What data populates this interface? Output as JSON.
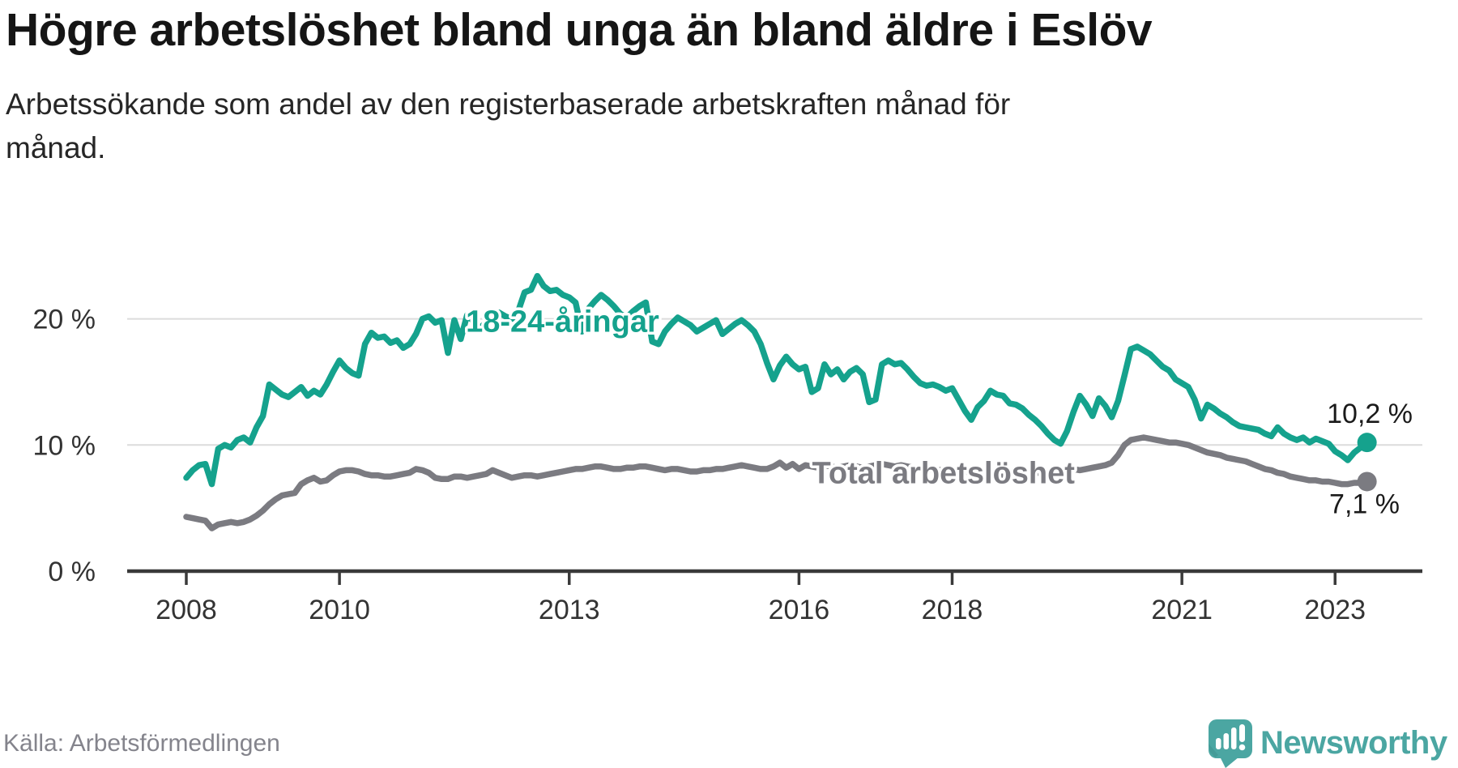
{
  "header": {
    "title": "Högre arbetslöshet bland unga än bland äldre i Eslöv",
    "subtitle": "Arbetssökande som andel av den registerbaserade arbetskraften månad för\nmånad."
  },
  "footer": {
    "source": "Källa: Arbetsförmedlingen",
    "brand": "Newsworthy"
  },
  "colors": {
    "youth": "#15a28d",
    "total": "#7b7b81",
    "brand": "#4ba6a2",
    "grid": "#dcdcdc",
    "axis": "#3a3a3a"
  },
  "chart_data": {
    "type": "line",
    "title": "Högre arbetslöshet bland unga än bland äldre i Eslöv",
    "x_start": 2008.0,
    "points_per_year": 12,
    "x_ticks": [
      {
        "value": 2008,
        "label": "2008"
      },
      {
        "value": 2010,
        "label": "2010"
      },
      {
        "value": 2013,
        "label": "2013"
      },
      {
        "value": 2016,
        "label": "2016"
      },
      {
        "value": 2018,
        "label": "2018"
      },
      {
        "value": 2021,
        "label": "2021"
      },
      {
        "value": 2023,
        "label": "2023"
      }
    ],
    "y_ticks": [
      {
        "value": 0,
        "label": "0 %"
      },
      {
        "value": 10,
        "label": "10 %"
      },
      {
        "value": 20,
        "label": "20 %"
      }
    ],
    "ylim": [
      0,
      25
    ],
    "xlim": [
      2007.2,
      2024.1
    ],
    "grid": "horizontal",
    "legend_position": "inline-labels",
    "series": [
      {
        "name": "18-24-åringar",
        "color": "#15a28d",
        "end_label": "10,2 %",
        "label_anchor": {
          "x": 2011.65,
          "y": 19.8
        },
        "values": [
          7.4,
          8.0,
          8.4,
          8.5,
          6.9,
          9.7,
          10.0,
          9.8,
          10.4,
          10.6,
          10.2,
          11.4,
          12.3,
          14.8,
          14.4,
          14.0,
          13.8,
          14.2,
          14.6,
          13.9,
          14.3,
          14.0,
          14.8,
          15.8,
          16.7,
          16.1,
          15.7,
          15.5,
          18.0,
          18.9,
          18.5,
          18.6,
          18.1,
          18.3,
          17.7,
          18.0,
          18.8,
          20.0,
          20.2,
          19.7,
          19.9,
          17.3,
          19.9,
          18.4,
          20.3,
          19.8,
          19.3,
          19.7,
          20.1,
          20.5,
          20.2,
          20.0,
          20.6,
          22.1,
          22.3,
          23.4,
          22.6,
          22.2,
          22.3,
          21.9,
          21.7,
          21.3,
          19.0,
          20.8,
          21.4,
          21.9,
          21.5,
          21.0,
          20.4,
          20.1,
          20.6,
          21.0,
          21.3,
          18.2,
          18.0,
          19.0,
          19.6,
          20.1,
          19.8,
          19.5,
          19.0,
          19.3,
          19.6,
          19.9,
          18.8,
          19.2,
          19.6,
          19.9,
          19.5,
          19.0,
          18.0,
          16.5,
          15.2,
          16.3,
          17.0,
          16.4,
          16.0,
          16.2,
          14.2,
          14.5,
          16.4,
          15.6,
          16.0,
          15.2,
          15.8,
          16.1,
          15.6,
          13.4,
          13.6,
          16.4,
          16.7,
          16.4,
          16.5,
          16.0,
          15.4,
          14.9,
          14.7,
          14.8,
          14.6,
          14.3,
          14.5,
          13.6,
          12.7,
          12.0,
          13.0,
          13.5,
          14.3,
          14.0,
          13.9,
          13.3,
          13.2,
          12.9,
          12.4,
          12.0,
          11.5,
          10.9,
          10.4,
          10.1,
          11.1,
          12.6,
          13.9,
          13.2,
          12.3,
          13.7,
          13.1,
          12.2,
          13.5,
          15.5,
          17.6,
          17.8,
          17.5,
          17.2,
          16.7,
          16.2,
          15.9,
          15.2,
          14.9,
          14.6,
          13.6,
          12.1,
          13.2,
          12.9,
          12.5,
          12.2,
          11.8,
          11.5,
          11.4,
          11.3,
          11.2,
          10.9,
          10.7,
          11.4,
          10.9,
          10.6,
          10.4,
          10.6,
          10.2,
          10.5,
          10.3,
          10.1,
          9.5,
          9.2,
          8.8,
          9.4,
          9.8,
          10.2
        ]
      },
      {
        "name": "Total arbetslöshet",
        "color": "#7b7b81",
        "end_label": "7,1 %",
        "label_anchor": {
          "x": 2016.17,
          "y": 7.8
        },
        "values": [
          4.3,
          4.2,
          4.1,
          4.0,
          3.4,
          3.7,
          3.8,
          3.9,
          3.8,
          3.9,
          4.1,
          4.4,
          4.8,
          5.3,
          5.7,
          6.0,
          6.1,
          6.2,
          6.9,
          7.2,
          7.4,
          7.1,
          7.2,
          7.6,
          7.9,
          8.0,
          8.0,
          7.9,
          7.7,
          7.6,
          7.6,
          7.5,
          7.5,
          7.6,
          7.7,
          7.8,
          8.1,
          8.0,
          7.8,
          7.4,
          7.3,
          7.3,
          7.5,
          7.5,
          7.4,
          7.5,
          7.6,
          7.7,
          8.0,
          7.8,
          7.6,
          7.4,
          7.5,
          7.6,
          7.6,
          7.5,
          7.6,
          7.7,
          7.8,
          7.9,
          8.0,
          8.1,
          8.1,
          8.2,
          8.3,
          8.3,
          8.2,
          8.1,
          8.1,
          8.2,
          8.2,
          8.3,
          8.3,
          8.2,
          8.1,
          8.0,
          8.1,
          8.1,
          8.0,
          7.9,
          7.9,
          8.0,
          8.0,
          8.1,
          8.1,
          8.2,
          8.3,
          8.4,
          8.3,
          8.2,
          8.1,
          8.1,
          8.3,
          8.6,
          8.2,
          8.5,
          8.1,
          8.4,
          8.3,
          8.2,
          8.4,
          8.3,
          8.2,
          8.3,
          8.4,
          8.3,
          8.2,
          8.3,
          8.4,
          8.5,
          8.4,
          8.3,
          8.4,
          8.3,
          8.2,
          8.1,
          8.0,
          8.1,
          8.0,
          8.1,
          8.1,
          8.0,
          7.9,
          7.8,
          7.8,
          7.7,
          7.6,
          7.5,
          7.5,
          7.6,
          7.6,
          7.7,
          7.7,
          7.8,
          7.8,
          7.9,
          7.9,
          8.0,
          8.1,
          8.1,
          8.0,
          8.1,
          8.2,
          8.3,
          8.4,
          8.6,
          9.2,
          10.0,
          10.4,
          10.5,
          10.6,
          10.5,
          10.4,
          10.3,
          10.2,
          10.2,
          10.1,
          10.0,
          9.8,
          9.6,
          9.4,
          9.3,
          9.2,
          9.0,
          8.9,
          8.8,
          8.7,
          8.5,
          8.3,
          8.1,
          8.0,
          7.8,
          7.7,
          7.5,
          7.4,
          7.3,
          7.2,
          7.2,
          7.1,
          7.1,
          7.0,
          6.9,
          6.9,
          7.0,
          7.0,
          7.1
        ]
      }
    ]
  }
}
